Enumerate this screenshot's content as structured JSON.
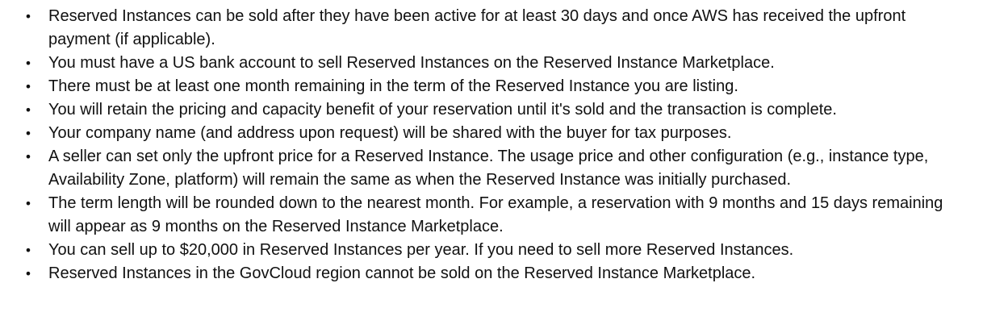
{
  "bullets": [
    "Reserved Instances can be sold after they have been active for at least 30 days and once AWS has received the upfront payment (if applicable).",
    "You must have a US bank account to sell Reserved Instances on the Reserved Instance Marketplace.",
    "There must be at least one month remaining in the term of the Reserved Instance you are listing.",
    "You will retain the pricing and capacity benefit of your reservation until it's sold and the transaction is complete.",
    "Your company name (and address upon request) will be shared with the buyer for tax purposes.",
    "A seller can set only the upfront price for a Reserved Instance. The usage price and other configuration (e.g., instance type, Availability Zone, platform) will remain the same as when the Reserved Instance was initially purchased.",
    "The term length will be rounded down to the nearest month. For example, a reservation with 9 months and 15 days remaining will appear as 9 months on the Reserved Instance Marketplace.",
    "You can sell up to $20,000 in Reserved Instances per year. If you need to sell more Reserved Instances.",
    "Reserved Instances in the GovCloud region cannot be sold on the Reserved Instance Marketplace."
  ],
  "bullet_glyph": "•"
}
